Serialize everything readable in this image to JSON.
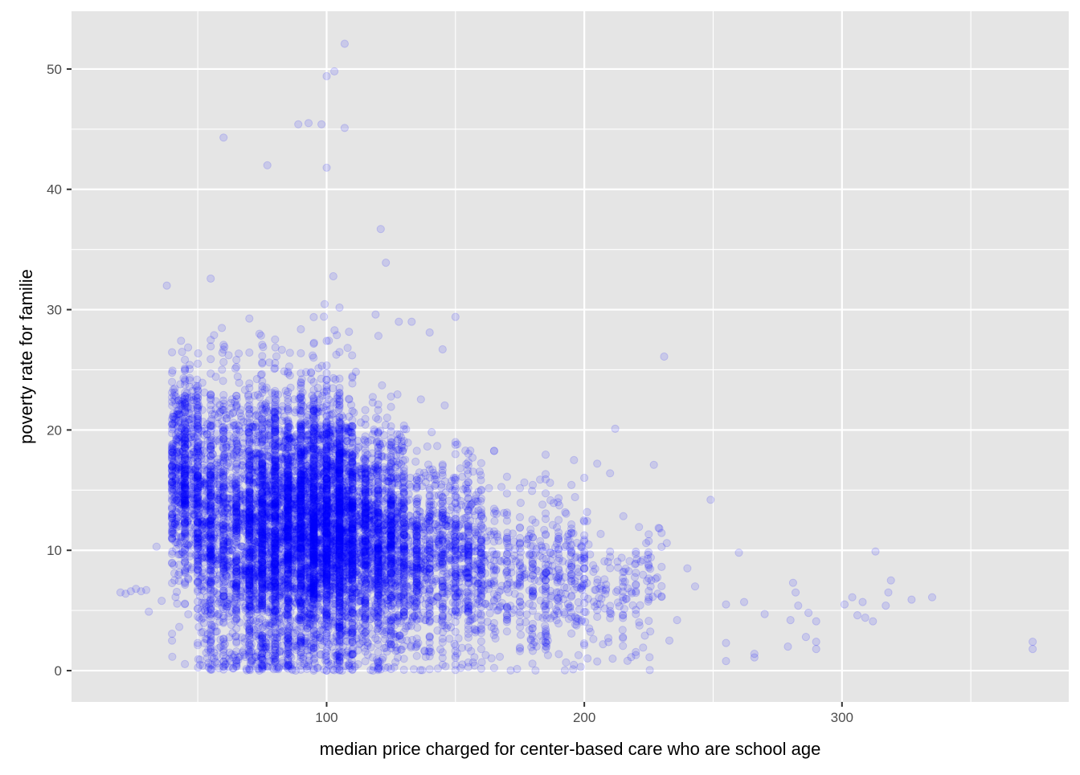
{
  "chart_data": {
    "type": "scatter",
    "title": "",
    "xlabel": "median price charged for center-based care who are school age",
    "ylabel": "poverty rate for familie",
    "xlim": [
      1,
      388
    ],
    "ylim": [
      -2.6,
      54.8
    ],
    "x_ticks": [
      100,
      200,
      300
    ],
    "x_minor_ticks": [
      50,
      150,
      250,
      350
    ],
    "y_ticks": [
      0,
      10,
      20,
      30,
      40,
      50
    ],
    "y_minor_ticks": [
      5,
      15,
      25,
      35,
      45
    ],
    "grid": true,
    "legend": "none",
    "point_color": "#0000ff",
    "point_alpha": 0.12,
    "panel_color": "#e5e5e5",
    "grid_color": "#ffffff",
    "bulk_density": [
      {
        "x_range": [
          40,
          50
        ],
        "y_mean": 16,
        "y_sd": 4.5,
        "count": 700
      },
      {
        "x_range": [
          50,
          70
        ],
        "y_mean": 12,
        "y_sd": 6,
        "count": 1300
      },
      {
        "x_range": [
          70,
          90
        ],
        "y_mean": 11.5,
        "y_sd": 5.5,
        "count": 2300
      },
      {
        "x_range": [
          90,
          110
        ],
        "y_mean": 12,
        "y_sd": 5.5,
        "count": 2800
      },
      {
        "x_range": [
          110,
          130
        ],
        "y_mean": 10.5,
        "y_sd": 4.5,
        "count": 1500
      },
      {
        "x_range": [
          130,
          160
        ],
        "y_mean": 9.5,
        "y_sd": 4,
        "count": 1000
      },
      {
        "x_range": [
          160,
          200
        ],
        "y_mean": 8,
        "y_sd": 3.5,
        "count": 500
      },
      {
        "x_range": [
          200,
          230
        ],
        "y_mean": 6.5,
        "y_sd": 3,
        "count": 150
      }
    ],
    "notable_points": [
      [
        20,
        6.5
      ],
      [
        22,
        6.4
      ],
      [
        24,
        6.6
      ],
      [
        26,
        6.8
      ],
      [
        28,
        6.6
      ],
      [
        30,
        6.7
      ],
      [
        34,
        10.3
      ],
      [
        36,
        5.8
      ],
      [
        31,
        4.9
      ],
      [
        38,
        32
      ],
      [
        107,
        52.1
      ],
      [
        103,
        49.8
      ],
      [
        100,
        49.4
      ],
      [
        107,
        45.1
      ],
      [
        60,
        44.3
      ],
      [
        89,
        45.4
      ],
      [
        93,
        45.5
      ],
      [
        98,
        45.4
      ],
      [
        100,
        41.8
      ],
      [
        77,
        42
      ],
      [
        121,
        36.7
      ],
      [
        123,
        33.9
      ],
      [
        119,
        29.6
      ],
      [
        128,
        29
      ],
      [
        150,
        29.4
      ],
      [
        133,
        29
      ],
      [
        140,
        28.1
      ],
      [
        145,
        26.7
      ],
      [
        231,
        26.1
      ],
      [
        227,
        17.1
      ],
      [
        249,
        14.2
      ],
      [
        260,
        9.8
      ],
      [
        270,
        4.7
      ],
      [
        240,
        8.5
      ],
      [
        243,
        7
      ],
      [
        255,
        5.5
      ],
      [
        262,
        5.7
      ],
      [
        266,
        1.4
      ],
      [
        266,
        1.1
      ],
      [
        255,
        2.3
      ],
      [
        255,
        0.8
      ],
      [
        280,
        4.2
      ],
      [
        281,
        7.3
      ],
      [
        282,
        6.5
      ],
      [
        283,
        5.4
      ],
      [
        287,
        4.8
      ],
      [
        290,
        4.1
      ],
      [
        290,
        2.4
      ],
      [
        290,
        1.8
      ],
      [
        279,
        2.0
      ],
      [
        286,
        2.8
      ],
      [
        301,
        5.5
      ],
      [
        304,
        6.1
      ],
      [
        306,
        4.6
      ],
      [
        308,
        5.7
      ],
      [
        309,
        4.4
      ],
      [
        312,
        4.1
      ],
      [
        313,
        9.9
      ],
      [
        317,
        5.4
      ],
      [
        318,
        6.5
      ],
      [
        319,
        7.5
      ],
      [
        327,
        5.9
      ],
      [
        335,
        6.1
      ],
      [
        374,
        2.4
      ],
      [
        374,
        1.8
      ],
      [
        210,
        16.4
      ],
      [
        212,
        20.1
      ],
      [
        205,
        17.2
      ],
      [
        196,
        17.5
      ],
      [
        224,
        10.6
      ],
      [
        232,
        10.6
      ],
      [
        226,
        7.5
      ],
      [
        236,
        4.2
      ],
      [
        233,
        2.5
      ],
      [
        211,
        1.0
      ],
      [
        121,
        0.1
      ],
      [
        118,
        0
      ],
      [
        88,
        0
      ],
      [
        95,
        0
      ],
      [
        106,
        0
      ],
      [
        109,
        0.2
      ]
    ]
  }
}
